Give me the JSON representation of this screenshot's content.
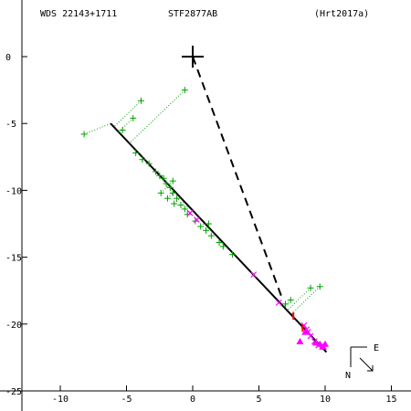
{
  "header": {
    "wds": "WDS 22143+1711",
    "discoverer": "STF2877AB",
    "reference": "(Hrt2017a)"
  },
  "compass": {
    "east": "E",
    "north": "N"
  },
  "colors": {
    "observation": "#00a000",
    "measurement": "#ff00ff",
    "orbit": "#000000",
    "link": "#000000",
    "residual": "#ff0000"
  },
  "chart_data": {
    "type": "scatter",
    "title": "",
    "xlabel": "",
    "ylabel": "",
    "xlim": [
      -12.5,
      16
    ],
    "ylim": [
      -25,
      2
    ],
    "xticks": [
      -10,
      -5,
      0,
      5,
      10,
      15
    ],
    "yticks": [
      0,
      -5,
      -10,
      -15,
      -20,
      -25
    ],
    "primary": [
      0,
      0
    ],
    "orbit_line": [
      [
        -6.2,
        -5.0
      ],
      [
        10.1,
        -22.1
      ]
    ],
    "dashed_link": [
      [
        0,
        0
      ],
      [
        6.8,
        -18.2
      ]
    ],
    "series": [
      {
        "marker": "plus",
        "points": [
          [
            -8.2,
            -5.8
          ],
          [
            -5.3,
            -5.5
          ],
          [
            -4.5,
            -4.6
          ],
          [
            -3.9,
            -3.3
          ],
          [
            -0.6,
            -2.5
          ],
          [
            -4.3,
            -7.2
          ],
          [
            -3.8,
            -7.7
          ],
          [
            -3.3,
            -8.0
          ],
          [
            -2.8,
            -8.6
          ],
          [
            -2.5,
            -8.9
          ],
          [
            -2.2,
            -9.1
          ],
          [
            -2.0,
            -9.5
          ],
          [
            -1.7,
            -9.8
          ],
          [
            -1.5,
            -10.2
          ],
          [
            -1.2,
            -10.6
          ],
          [
            -0.9,
            -11.1
          ],
          [
            -0.6,
            -11.4
          ],
          [
            -2.4,
            -10.2
          ],
          [
            -1.4,
            -11.0
          ],
          [
            -0.4,
            -11.8
          ],
          [
            0.2,
            -12.3
          ],
          [
            0.6,
            -12.7
          ],
          [
            1.0,
            -13.0
          ],
          [
            1.4,
            -13.4
          ],
          [
            2.0,
            -13.9
          ],
          [
            2.3,
            -14.2
          ],
          [
            3.0,
            -14.8
          ],
          [
            1.2,
            -12.5
          ],
          [
            -1.5,
            -9.3
          ],
          [
            -1.9,
            -10.6
          ],
          [
            7.0,
            -18.5
          ],
          [
            7.4,
            -18.2
          ],
          [
            8.9,
            -17.3
          ],
          [
            9.6,
            -17.2
          ]
        ]
      },
      {
        "marker": "cross",
        "points": [
          [
            -0.2,
            -11.7
          ],
          [
            0.3,
            -12.2
          ],
          [
            4.6,
            -16.3
          ],
          [
            6.5,
            -18.4
          ],
          [
            8.4,
            -20.1
          ],
          [
            8.6,
            -20.4
          ],
          [
            8.7,
            -20.6
          ],
          [
            8.9,
            -20.9
          ],
          [
            9.2,
            -21.3
          ],
          [
            9.5,
            -21.6
          ],
          [
            9.9,
            -21.7
          ]
        ]
      },
      {
        "marker": "triangle",
        "points": [
          [
            8.1,
            -21.3
          ],
          [
            8.5,
            -20.6
          ],
          [
            9.3,
            -21.4
          ],
          [
            9.6,
            -21.5
          ],
          [
            9.8,
            -21.7
          ],
          [
            10.0,
            -21.5
          ]
        ]
      }
    ],
    "residual_points": [
      [
        7.6,
        -19.4
      ],
      [
        8.3,
        -20.3
      ]
    ]
  }
}
